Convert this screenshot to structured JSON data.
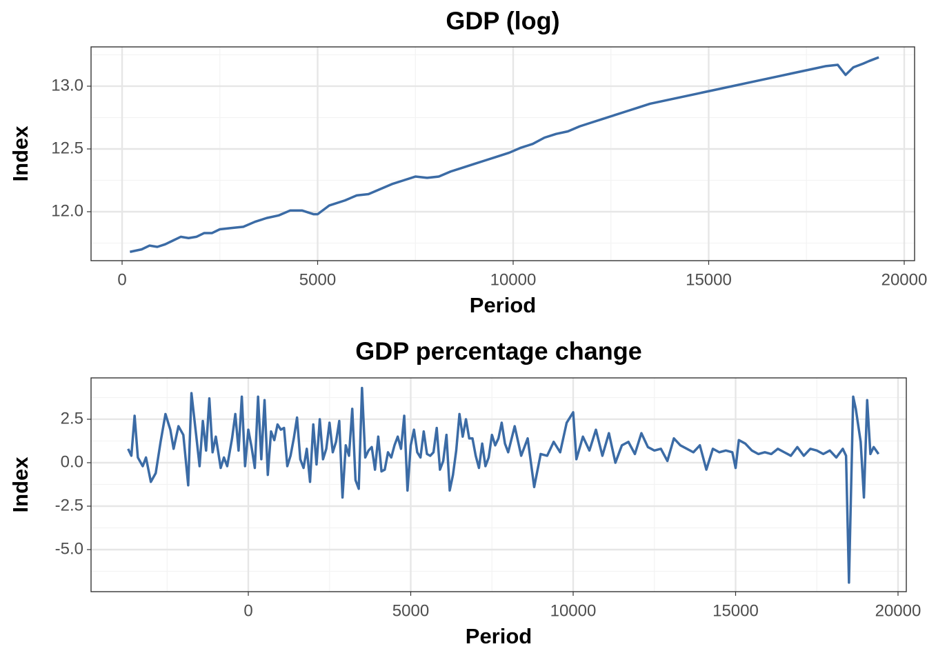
{
  "chart_data": [
    {
      "type": "line",
      "title": "GDP (log)",
      "x_label": "Period",
      "y_label": "Index",
      "xlim": [
        -794,
        20265
      ],
      "ylim": [
        11.61,
        13.313
      ],
      "xticks": [
        0,
        5000,
        10000,
        15000,
        20000
      ],
      "yticks": [
        {
          "value": 12,
          "label": "12.0"
        },
        {
          "value": 12.5,
          "label": "12.5"
        },
        {
          "value": 13,
          "label": "13.0"
        }
      ],
      "grid": true,
      "minor_grid": true,
      "color": "#3b6ba5",
      "x": [
        200,
        500,
        700,
        900,
        1100,
        1300,
        1500,
        1700,
        1900,
        2100,
        2300,
        2500,
        2800,
        3100,
        3400,
        3700,
        4000,
        4300,
        4600,
        4900,
        5000,
        5300,
        5700,
        6000,
        6300,
        6600,
        6900,
        7200,
        7500,
        7800,
        8100,
        8400,
        8700,
        9000,
        9300,
        9600,
        9900,
        10200,
        10500,
        10800,
        11100,
        11400,
        11700,
        12000,
        12300,
        12600,
        12900,
        13200,
        13500,
        13800,
        14100,
        14400,
        14700,
        15000,
        15300,
        15600,
        15900,
        16200,
        16500,
        16800,
        17100,
        17400,
        17700,
        18000,
        18300,
        18500,
        18700,
        18950,
        19100,
        19350
      ],
      "values": [
        11.68,
        11.7,
        11.73,
        11.72,
        11.74,
        11.77,
        11.8,
        11.79,
        11.8,
        11.83,
        11.83,
        11.86,
        11.87,
        11.88,
        11.92,
        11.95,
        11.97,
        12.01,
        12.01,
        11.98,
        11.98,
        12.05,
        12.09,
        12.13,
        12.14,
        12.18,
        12.22,
        12.25,
        12.28,
        12.27,
        12.28,
        12.32,
        12.35,
        12.38,
        12.41,
        12.44,
        12.47,
        12.51,
        12.54,
        12.59,
        12.62,
        12.64,
        12.68,
        12.71,
        12.74,
        12.77,
        12.8,
        12.83,
        12.86,
        12.88,
        12.9,
        12.92,
        12.94,
        12.96,
        12.98,
        13.0,
        13.02,
        13.04,
        13.06,
        13.08,
        13.1,
        13.12,
        13.14,
        13.16,
        13.17,
        13.09,
        13.15,
        13.18,
        13.2,
        13.23
      ]
    },
    {
      "type": "line",
      "title": "GDP percentage change",
      "x_label": "Period",
      "y_label": "Index",
      "xlim": [
        -4841,
        20255
      ],
      "ylim": [
        -7.42,
        4.88
      ],
      "xticks": [
        0,
        5000,
        10000,
        15000,
        20000
      ],
      "yticks": [
        {
          "value": -5,
          "label": "-5.0"
        },
        -2.5,
        {
          "value": 0,
          "label": "0.0"
        },
        2.5
      ],
      "grid": true,
      "minor_grid": true,
      "color": "#3b6ba5",
      "x": [
        -3700,
        -3600,
        -3500,
        -3400,
        -3250,
        -3150,
        -3000,
        -2850,
        -2700,
        -2550,
        -2400,
        -2300,
        -2150,
        -2000,
        -1850,
        -1750,
        -1600,
        -1500,
        -1400,
        -1300,
        -1200,
        -1100,
        -1000,
        -850,
        -750,
        -650,
        -500,
        -400,
        -300,
        -200,
        -100,
        0,
        100,
        200,
        300,
        400,
        500,
        600,
        700,
        800,
        900,
        1000,
        1100,
        1200,
        1300,
        1400,
        1500,
        1600,
        1700,
        1800,
        1900,
        2000,
        2100,
        2200,
        2300,
        2400,
        2500,
        2600,
        2700,
        2800,
        2900,
        3000,
        3100,
        3200,
        3300,
        3400,
        3500,
        3600,
        3700,
        3800,
        3900,
        4000,
        4100,
        4200,
        4300,
        4400,
        4500,
        4600,
        4700,
        4800,
        4900,
        5000,
        5100,
        5200,
        5300,
        5400,
        5500,
        5600,
        5700,
        5800,
        5900,
        6000,
        6100,
        6200,
        6300,
        6400,
        6500,
        6600,
        6700,
        6800,
        6900,
        7000,
        7100,
        7200,
        7300,
        7400,
        7500,
        7600,
        7700,
        7800,
        7900,
        8000,
        8200,
        8400,
        8600,
        8800,
        9000,
        9200,
        9400,
        9600,
        9800,
        10000,
        10100,
        10300,
        10500,
        10700,
        10900,
        11100,
        11300,
        11500,
        11700,
        11900,
        12100,
        12300,
        12500,
        12700,
        12900,
        13100,
        13300,
        13500,
        13700,
        13900,
        14100,
        14300,
        14500,
        14700,
        14900,
        15000,
        15100,
        15300,
        15500,
        15700,
        15900,
        16100,
        16300,
        16500,
        16700,
        16900,
        17100,
        17300,
        17500,
        17700,
        17900,
        18100,
        18300,
        18400,
        18490,
        18620,
        18700,
        18850,
        18950,
        19050,
        19150,
        19250,
        19400
      ],
      "values": [
        0.8,
        0.4,
        2.7,
        0.3,
        -0.2,
        0.3,
        -1.1,
        -0.6,
        1.2,
        2.8,
        1.9,
        0.8,
        2.1,
        1.6,
        -1.3,
        4.0,
        1.5,
        -0.2,
        2.4,
        0.7,
        3.7,
        0.6,
        1.5,
        -0.3,
        0.3,
        -0.2,
        1.4,
        2.8,
        0.7,
        3.8,
        -0.2,
        1.9,
        0.9,
        -0.3,
        3.8,
        0.2,
        3.6,
        -0.7,
        1.8,
        1.3,
        2.2,
        1.9,
        2.0,
        -0.2,
        0.4,
        1.4,
        2.6,
        0.2,
        -0.3,
        0.8,
        -1.1,
        2.2,
        -0.1,
        2.5,
        0.2,
        0.8,
        2.3,
        0.6,
        1.2,
        2.4,
        -2.0,
        1.0,
        0.4,
        3.1,
        -1.0,
        -1.5,
        4.3,
        0.3,
        0.7,
        0.9,
        -0.4,
        1.5,
        -0.5,
        -0.4,
        0.6,
        0.3,
        1.0,
        1.5,
        0.8,
        2.7,
        -1.6,
        1.0,
        1.9,
        0.6,
        0.3,
        1.8,
        0.5,
        0.4,
        0.6,
        2.0,
        -0.4,
        0.1,
        1.6,
        -1.6,
        -0.7,
        0.7,
        2.8,
        1.5,
        2.5,
        1.4,
        1.4,
        0.4,
        -0.3,
        1.1,
        -0.2,
        0.3,
        1.6,
        1.0,
        1.4,
        2.3,
        1.1,
        0.6,
        2.1,
        0.4,
        1.4,
        -1.4,
        0.5,
        0.4,
        1.2,
        0.6,
        2.3,
        2.9,
        0.2,
        1.5,
        0.7,
        1.9,
        0.4,
        1.7,
        0.0,
        1.0,
        1.2,
        0.5,
        1.7,
        0.9,
        0.7,
        0.8,
        0.1,
        1.4,
        1.0,
        0.8,
        0.6,
        1.0,
        -0.4,
        0.8,
        0.6,
        0.7,
        0.6,
        -0.3,
        1.3,
        1.1,
        0.7,
        0.5,
        0.6,
        0.5,
        0.8,
        0.6,
        0.4,
        0.9,
        0.4,
        0.8,
        0.7,
        0.5,
        0.7,
        0.3,
        0.8,
        0.4,
        -6.9,
        3.8,
        3.1,
        1.2,
        -2.0,
        3.6,
        0.5,
        0.9,
        0.5
      ]
    }
  ]
}
